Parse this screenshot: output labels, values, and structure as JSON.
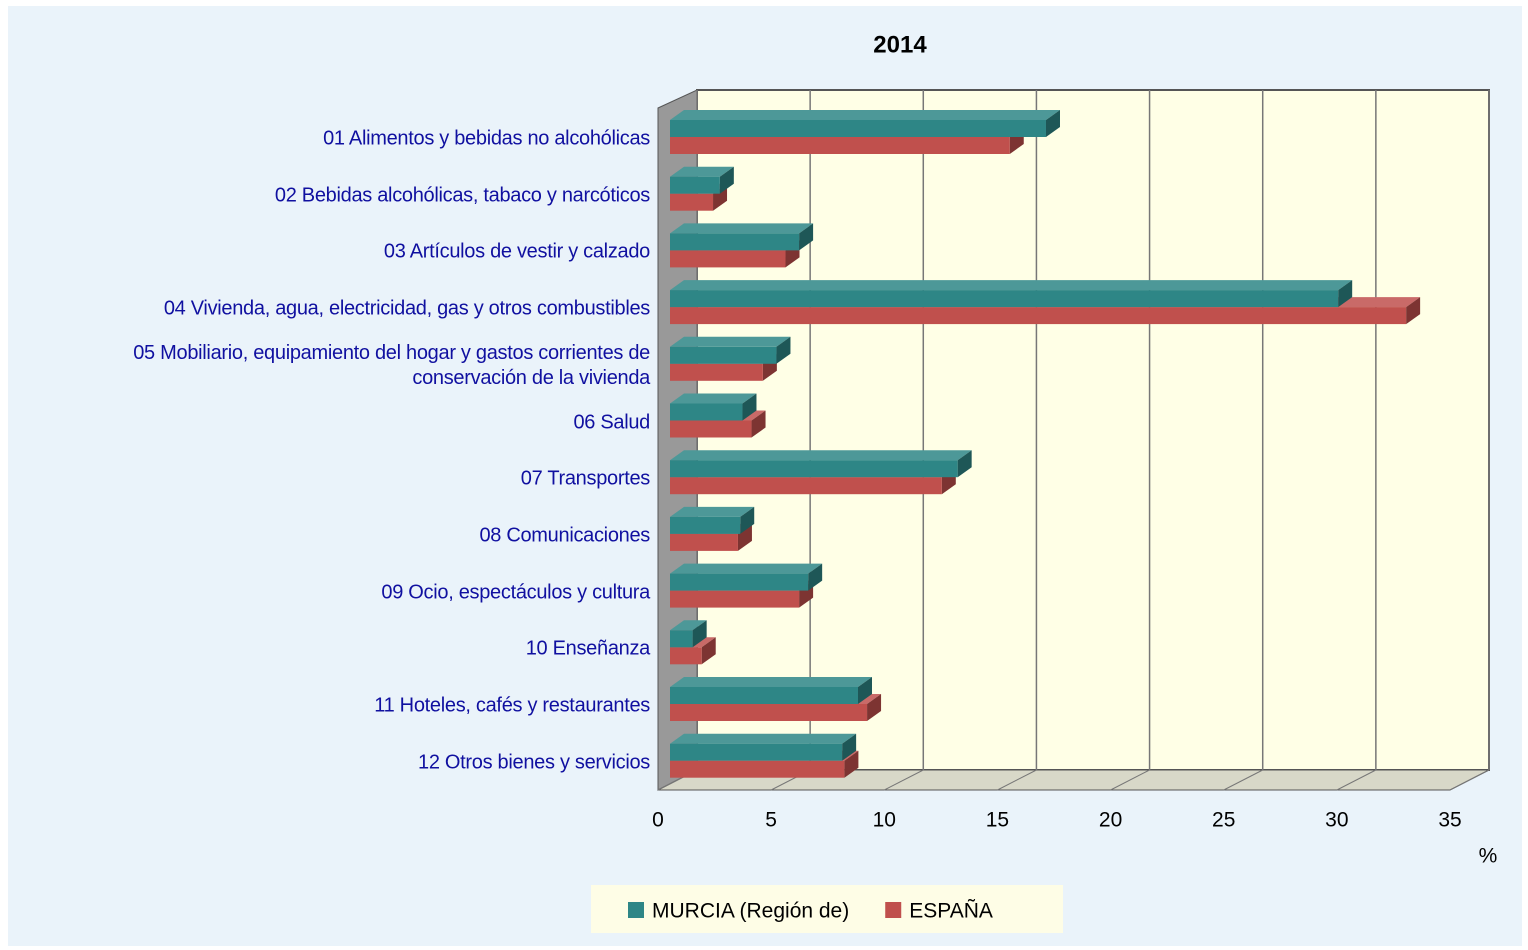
{
  "chart_data": {
    "type": "bar3d",
    "orientation": "horizontal",
    "title": "2014",
    "xlabel": "%",
    "categories": [
      "01 Alimentos y bebidas no alcohólicas",
      "02 Bebidas alcohólicas, tabaco y narcóticos",
      "03 Artículos de vestir y calzado",
      "04 Vivienda, agua, electricidad, gas y otros combustibles",
      "05 Mobiliario, equipamiento del hogar y gastos corrientes de conservación de la vivienda",
      "06 Salud",
      "07 Transportes",
      "08 Comunicaciones",
      "09 Ocio, espectáculos y cultura",
      "10 Enseñanza",
      "11 Hoteles, cafés y restaurantes",
      "12 Otros bienes y servicios"
    ],
    "series": [
      {
        "name": "MURCIA (Región de)",
        "color": "#2e8686",
        "values": [
          16.6,
          2.2,
          5.7,
          29.5,
          4.7,
          3.2,
          12.7,
          3.1,
          6.1,
          1.0,
          8.3,
          7.6
        ]
      },
      {
        "name": "ESPAÑA",
        "color": "#c0504d",
        "values": [
          15.0,
          1.9,
          5.1,
          32.5,
          4.1,
          3.6,
          12.0,
          3.0,
          5.7,
          1.4,
          8.7,
          7.7
        ]
      }
    ],
    "xlim": [
      0,
      35
    ],
    "xticks": [
      0,
      5,
      10,
      15,
      20,
      25,
      30,
      35
    ],
    "grid": true,
    "legend": "bottom"
  }
}
